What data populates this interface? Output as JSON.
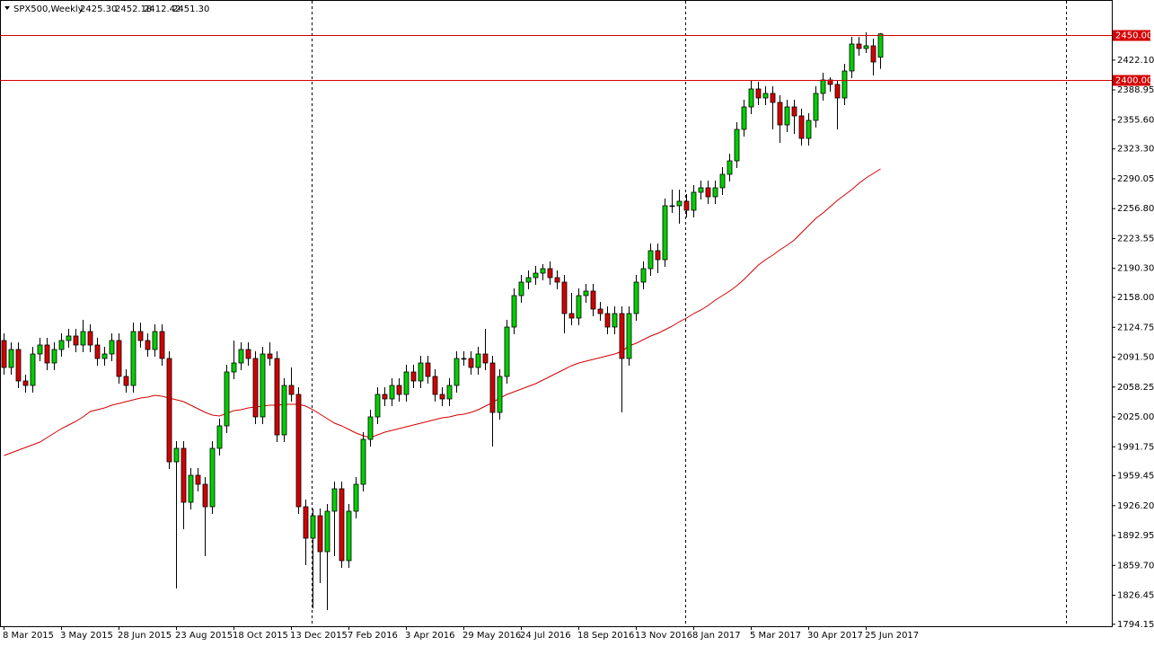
{
  "header": {
    "symbol": "SPX500,Weekly",
    "ohlc": [
      "2425.30",
      "2452.18",
      "2412.42",
      "2451.30"
    ]
  },
  "chart_data": {
    "type": "candlestick",
    "up_color": "#00d000",
    "down_color": "#d40000",
    "ma_color": "#d40000",
    "ylim": [
      1792,
      2489
    ],
    "yticks": [
      {
        "value": 2422.1,
        "label": "2422.10"
      },
      {
        "value": 2388.95,
        "label": "2388.95"
      },
      {
        "value": 2355.6,
        "label": "2355.60"
      },
      {
        "value": 2323.3,
        "label": "2323.30"
      },
      {
        "value": 2290.05,
        "label": "2290.05"
      },
      {
        "value": 2256.8,
        "label": "2256.80"
      },
      {
        "value": 2223.55,
        "label": "2223.55"
      },
      {
        "value": 2190.3,
        "label": "2190.30"
      },
      {
        "value": 2158,
        "label": "2158.00"
      },
      {
        "value": 2124.75,
        "label": "2124.75"
      },
      {
        "value": 2091.5,
        "label": "2091.50"
      },
      {
        "value": 2058.25,
        "label": "2058.25"
      },
      {
        "value": 2025,
        "label": "2025.00"
      },
      {
        "value": 1991.75,
        "label": "1991.75"
      },
      {
        "value": 1959.45,
        "label": "1959.45"
      },
      {
        "value": 1926.2,
        "label": "1926.20"
      },
      {
        "value": 1892.95,
        "label": "1892.95"
      },
      {
        "value": 1859.7,
        "label": "1859.70"
      },
      {
        "value": 1826.45,
        "label": "1826.45"
      },
      {
        "value": 1794.15,
        "label": "1794.15"
      }
    ],
    "hlines": [
      {
        "value": 2450,
        "label": "2450.00",
        "color": "#d40000"
      },
      {
        "value": 2400,
        "label": "2400.00",
        "color": "#d40000"
      }
    ],
    "categories": [
      "8 Mar 2015",
      null,
      null,
      null,
      null,
      null,
      null,
      null,
      "3 May 2015",
      null,
      null,
      null,
      null,
      null,
      null,
      null,
      "28 Jun 2015",
      null,
      null,
      null,
      null,
      null,
      null,
      null,
      "23 Aug 2015",
      null,
      null,
      null,
      null,
      null,
      null,
      null,
      "18 Oct 2015",
      null,
      null,
      null,
      null,
      null,
      null,
      null,
      "13 Dec 2015",
      null,
      null,
      null,
      null,
      null,
      null,
      null,
      "7 Feb 2016",
      null,
      null,
      null,
      null,
      null,
      null,
      null,
      "3 Apr 2016",
      null,
      null,
      null,
      null,
      null,
      null,
      null,
      "29 May 2016",
      null,
      null,
      null,
      null,
      null,
      null,
      null,
      "24 Jul 2016",
      null,
      null,
      null,
      null,
      null,
      null,
      null,
      "18 Sep 2016",
      null,
      null,
      null,
      null,
      null,
      null,
      null,
      "13 Nov 2016",
      null,
      null,
      null,
      null,
      null,
      null,
      null,
      "8 Jan 2017",
      null,
      null,
      null,
      null,
      null,
      null,
      null,
      "5 Mar 2017",
      null,
      null,
      null,
      null,
      null,
      null,
      null,
      "30 Apr 2017",
      null,
      null,
      null,
      null,
      null,
      null,
      null,
      "25 Jun 2017",
      null,
      null
    ],
    "open": [
      2110,
      2080,
      2100,
      2065,
      2060,
      2095,
      2105,
      2085,
      2100,
      2110,
      2115,
      2105,
      2120,
      2105,
      2090,
      2095,
      2110,
      2070,
      2060,
      2120,
      2110,
      2100,
      2120,
      2090,
      1975,
      1990,
      1930,
      1960,
      1950,
      1925,
      1990,
      2015,
      2075,
      2085,
      2100,
      2090,
      2025,
      2095,
      2090,
      2005,
      2060,
      2050,
      1925,
      1890,
      1915,
      1875,
      1920,
      1945,
      1865,
      1920,
      1950,
      2000,
      2025,
      2050,
      2045,
      2060,
      2050,
      2075,
      2065,
      2085,
      2070,
      2050,
      2045,
      2060,
      2090,
      2090,
      2080,
      2095,
      2085,
      2030,
      2070,
      2125,
      2160,
      2175,
      2180,
      2185,
      2190,
      2180,
      2175,
      2140,
      2135,
      2160,
      2165,
      2145,
      2140,
      2125,
      2140,
      2090,
      2140,
      2175,
      2190,
      2210,
      2200,
      2260,
      2260,
      2265,
      2255,
      2275,
      2280,
      2270,
      2280,
      2295,
      2310,
      2345,
      2370,
      2390,
      2380,
      2385,
      2375,
      2350,
      2370,
      2360,
      2335,
      2355,
      2385,
      2400,
      2395,
      2380,
      2410,
      2440,
      2435,
      2438,
      2425.3
    ],
    "high": [
      2118,
      2108,
      2108,
      2072,
      2103,
      2113,
      2113,
      2108,
      2118,
      2123,
      2123,
      2133,
      2128,
      2113,
      2103,
      2118,
      2118,
      2078,
      2130,
      2130,
      2118,
      2128,
      2128,
      2098,
      1998,
      1998,
      1968,
      1968,
      1958,
      1998,
      2023,
      2083,
      2110,
      2108,
      2108,
      2098,
      2103,
      2108,
      2098,
      2068,
      2080,
      2058,
      1933,
      1923,
      1923,
      1928,
      1953,
      1953,
      1928,
      1958,
      2008,
      2033,
      2058,
      2058,
      2068,
      2068,
      2083,
      2083,
      2093,
      2093,
      2078,
      2058,
      2068,
      2098,
      2098,
      2098,
      2103,
      2123,
      2093,
      2078,
      2133,
      2168,
      2183,
      2188,
      2193,
      2195,
      2198,
      2188,
      2183,
      2163,
      2168,
      2173,
      2173,
      2153,
      2148,
      2148,
      2148,
      2148,
      2183,
      2198,
      2218,
      2218,
      2268,
      2278,
      2278,
      2273,
      2283,
      2288,
      2288,
      2288,
      2303,
      2318,
      2353,
      2378,
      2400,
      2398,
      2393,
      2393,
      2383,
      2378,
      2378,
      2368,
      2363,
      2393,
      2408,
      2403,
      2400,
      2418,
      2448,
      2448,
      2453,
      2446,
      2452.18
    ],
    "low": [
      2072,
      2072,
      2057,
      2052,
      2052,
      2087,
      2077,
      2077,
      2092,
      2102,
      2097,
      2097,
      2097,
      2082,
      2082,
      2087,
      2062,
      2052,
      2052,
      2102,
      2092,
      2092,
      2082,
      1967,
      1834,
      1900,
      1922,
      1942,
      1870,
      1917,
      1982,
      2007,
      2067,
      2077,
      2082,
      2017,
      2017,
      2082,
      1997,
      1997,
      2042,
      1917,
      1860,
      1812,
      1840,
      1810,
      1870,
      1857,
      1857,
      1912,
      1942,
      1992,
      2017,
      2037,
      2037,
      2042,
      2042,
      2057,
      2057,
      2062,
      2042,
      2037,
      2037,
      2052,
      2082,
      2072,
      2072,
      2077,
      1992,
      2022,
      2062,
      2117,
      2152,
      2167,
      2172,
      2177,
      2172,
      2167,
      2118,
      2127,
      2127,
      2152,
      2137,
      2132,
      2117,
      2117,
      2030,
      2082,
      2132,
      2167,
      2182,
      2185,
      2192,
      2252,
      2240,
      2247,
      2247,
      2267,
      2262,
      2262,
      2272,
      2287,
      2302,
      2337,
      2362,
      2372,
      2372,
      2345,
      2330,
      2342,
      2340,
      2327,
      2327,
      2347,
      2377,
      2387,
      2345,
      2372,
      2402,
      2427,
      2430,
      2405,
      2412.42
    ],
    "close": [
      2080,
      2100,
      2065,
      2060,
      2095,
      2105,
      2085,
      2100,
      2110,
      2115,
      2105,
      2120,
      2105,
      2090,
      2095,
      2110,
      2070,
      2060,
      2120,
      2110,
      2100,
      2120,
      2090,
      1975,
      1990,
      1930,
      1960,
      1950,
      1925,
      1990,
      2015,
      2075,
      2085,
      2100,
      2090,
      2025,
      2095,
      2090,
      2005,
      2060,
      2050,
      1925,
      1890,
      1915,
      1875,
      1920,
      1945,
      1865,
      1920,
      1950,
      2000,
      2025,
      2050,
      2045,
      2060,
      2050,
      2075,
      2065,
      2085,
      2070,
      2050,
      2045,
      2060,
      2090,
      2090,
      2080,
      2095,
      2085,
      2030,
      2070,
      2125,
      2160,
      2175,
      2180,
      2185,
      2190,
      2180,
      2175,
      2140,
      2135,
      2160,
      2165,
      2145,
      2140,
      2125,
      2140,
      2090,
      2140,
      2175,
      2190,
      2210,
      2200,
      2260,
      2260,
      2265,
      2255,
      2275,
      2280,
      2270,
      2280,
      2295,
      2310,
      2345,
      2370,
      2390,
      2380,
      2385,
      2375,
      2350,
      2370,
      2360,
      2335,
      2355,
      2385,
      2400,
      2395,
      2380,
      2410,
      2440,
      2435,
      2438,
      2420,
      2451.3
    ],
    "ma": [
      1982,
      1985,
      1988,
      1991,
      1994,
      1997,
      2002,
      2007,
      2012,
      2016,
      2020,
      2025,
      2031,
      2033,
      2035,
      2038,
      2040,
      2042,
      2044,
      2046,
      2047,
      2049,
      2048,
      2046,
      2044,
      2042,
      2038,
      2034,
      2030,
      2027,
      2026,
      2029,
      2032,
      2033,
      2035,
      2036,
      2037,
      2038,
      2038,
      2039,
      2039,
      2039,
      2037,
      2033,
      2028,
      2023,
      2018,
      2015,
      2011,
      2007,
      2004,
      2002,
      2005,
      2008,
      2010,
      2012,
      2014,
      2016,
      2018,
      2020,
      2022,
      2024,
      2025,
      2027,
      2028,
      2030,
      2033,
      2037,
      2041,
      2046,
      2050,
      2053,
      2056,
      2059,
      2062,
      2066,
      2070,
      2074,
      2078,
      2082,
      2085,
      2087,
      2089,
      2091,
      2093,
      2095,
      2098,
      2104,
      2107,
      2111,
      2115,
      2118,
      2122,
      2126,
      2131,
      2135,
      2140,
      2144,
      2149,
      2155,
      2160,
      2165,
      2171,
      2178,
      2186,
      2194,
      2200,
      2205,
      2211,
      2216,
      2222,
      2230,
      2238,
      2246,
      2252,
      2259,
      2266,
      2272,
      2278,
      2285,
      2291,
      2296,
      2301
    ]
  }
}
